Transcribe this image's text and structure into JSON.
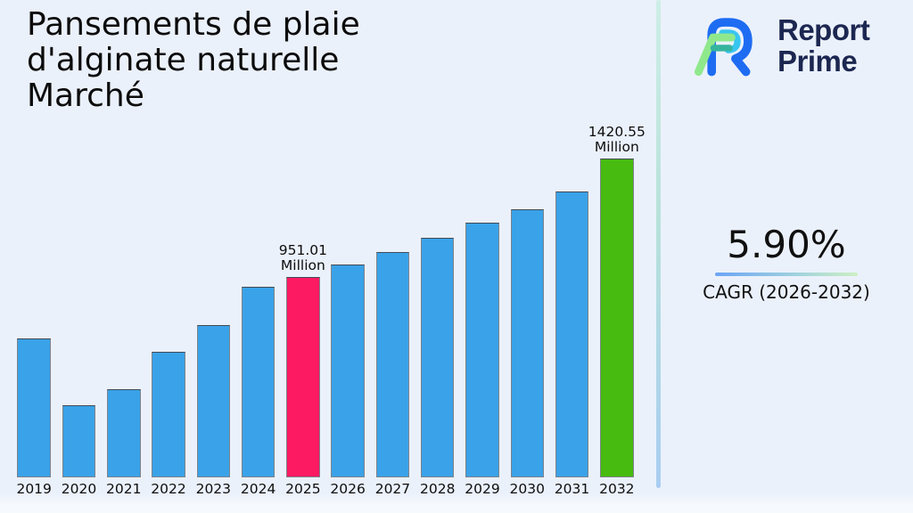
{
  "title": {
    "lines": [
      "Pansements de plaie",
      "d'alginate naturelle",
      "Marché"
    ]
  },
  "logo": {
    "name": "Report Prime",
    "line1": "Report",
    "line2": "Prime",
    "text_color": "#1c2751",
    "mark_colors": {
      "blue": "#1e6cf2",
      "cyan": "#38c6f0",
      "light_green": "#8fe98c",
      "teal": "#36b49e"
    }
  },
  "cagr": {
    "value": "5.90%",
    "label": "CAGR (2026-2032)"
  },
  "chart_data": {
    "type": "bar",
    "title": "Pansements de plaie d'alginate naturelle Marché",
    "xlabel": "",
    "ylabel": "",
    "unit": "Million",
    "grid": false,
    "y_axis_shown": false,
    "categories": [
      "2019",
      "2020",
      "2021",
      "2022",
      "2023",
      "2024",
      "2025",
      "2026",
      "2027",
      "2028",
      "2029",
      "2030",
      "2031",
      "2032"
    ],
    "values": [
      708,
      443,
      506,
      656,
      760,
      912,
      951.01,
      999,
      1050,
      1105,
      1165,
      1218,
      1290,
      1420.55
    ],
    "labeled_values": {
      "2025": "951.01 Million",
      "2032": "1420.55 Million"
    },
    "bar_color_default": "#3aa2e8",
    "bar_color_overrides": {
      "6": "#fc1a63",
      "13": "#47bb0f"
    },
    "annotations": [
      {
        "index": 6,
        "value_label": "951.01",
        "unit_label": "Million"
      },
      {
        "index": 13,
        "value_label": "1420.55",
        "unit_label": "Million"
      }
    ]
  }
}
